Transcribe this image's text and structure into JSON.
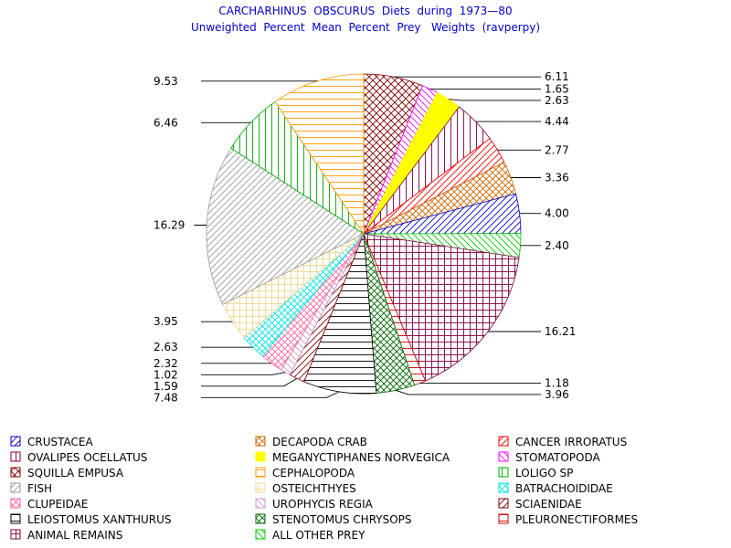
{
  "chart_data": {
    "type": "pie",
    "title": "CARCHARHINUS  OBSCURUS  Diets  during  1973—80",
    "subtitle": "Unweighted  Percent  Mean  Percent  Prey   Weights  (ravperpy)",
    "slices": [
      {
        "label": "SQUILLA EMPUSA",
        "value": 6.11,
        "value_label": "6.11",
        "color": "#800000",
        "pattern": "cross"
      },
      {
        "label": "STOMATOPODA",
        "value": 1.65,
        "value_label": "1.65",
        "color": "#ff00ff",
        "pattern": "diag-down"
      },
      {
        "label": "MEGANYCTIPHANES NORVEGICA",
        "value": 2.63,
        "value_label": "2.63",
        "color": "#ffff00",
        "pattern": "solid"
      },
      {
        "label": "OVALIPES OCELLATUS",
        "value": 4.44,
        "value_label": "4.44",
        "color": "#800040",
        "pattern": "vert"
      },
      {
        "label": "CANCER IRRORATUS",
        "value": 2.77,
        "value_label": "2.77",
        "color": "#ff0000",
        "pattern": "diag-up"
      },
      {
        "label": "DECAPODA CRAB",
        "value": 3.36,
        "value_label": "3.36",
        "color": "#cc6600",
        "pattern": "cross-diag"
      },
      {
        "label": "CRUSTACEA",
        "value": 4.0,
        "value_label": "4.00",
        "color": "#0000cc",
        "pattern": "diag-up"
      },
      {
        "label": "ALL OTHER PREY",
        "value": 2.4,
        "value_label": "2.40",
        "color": "#00cc00",
        "pattern": "diag-down"
      },
      {
        "label": "ANIMAL REMAINS",
        "value": 16.21,
        "value_label": "16.21",
        "color": "#800040",
        "pattern": "grid"
      },
      {
        "label": "PLEURONECTIFORMES",
        "value": 1.18,
        "value_label": "1.18",
        "color": "#cc0000",
        "pattern": "horiz"
      },
      {
        "label": "STENOTOMUS CHRYSOPS",
        "value": 3.96,
        "value_label": "3.96",
        "color": "#006600",
        "pattern": "cross-diag"
      },
      {
        "label": "LEIOSTOMUS XANTHURUS",
        "value": 7.48,
        "value_label": "7.48",
        "color": "#000000",
        "pattern": "horiz"
      },
      {
        "label": "SCIAENIDAE",
        "value": 1.59,
        "value_label": "1.59",
        "color": "#800000",
        "pattern": "diag-up"
      },
      {
        "label": "UROPHYCIS REGIA",
        "value": 1.02,
        "value_label": "1.02",
        "color": "#cc99cc",
        "pattern": "diag-down"
      },
      {
        "label": "CLUPEIDAE",
        "value": 2.32,
        "value_label": "2.32",
        "color": "#ff6699",
        "pattern": "cross-diag"
      },
      {
        "label": "BATRACHOIDIDAE",
        "value": 2.63,
        "value_label": "2.63",
        "color": "#00e5e5",
        "pattern": "cross-diag"
      },
      {
        "label": "OSTEICHTHYES",
        "value": 3.95,
        "value_label": "3.95",
        "color": "#f0d890",
        "pattern": "grid"
      },
      {
        "label": "FISH",
        "value": 16.29,
        "value_label": "16.29",
        "color": "#999999",
        "pattern": "diag-up"
      },
      {
        "label": "LOLIGO SP",
        "value": 6.46,
        "value_label": "6.46",
        "color": "#00aa00",
        "pattern": "vert"
      },
      {
        "label": "CEPHALOPODA",
        "value": 9.53,
        "value_label": "9.53",
        "color": "#ff9900",
        "pattern": "horiz"
      }
    ],
    "legend": {
      "placement": "bottom",
      "columns": 3,
      "items": [
        "CRUSTACEA",
        "DECAPODA CRAB",
        "CANCER IRRORATUS",
        "OVALIPES OCELLATUS",
        "MEGANYCTIPHANES NORVEGICA",
        "STOMATOPODA",
        "SQUILLA EMPUSA",
        "CEPHALOPODA",
        "LOLIGO SP",
        "FISH",
        "OSTEICHTHYES",
        "BATRACHOIDIDAE",
        "CLUPEIDAE",
        "UROPHYCIS REGIA",
        "SCIAENIDAE",
        "LEIOSTOMUS XANTHURUS",
        "STENOTOMUS CHRYSOPS",
        "PLEURONECTIFORMES",
        "ANIMAL REMAINS",
        "ALL OTHER PREY"
      ]
    },
    "start": "north",
    "direction": "clockwise"
  }
}
